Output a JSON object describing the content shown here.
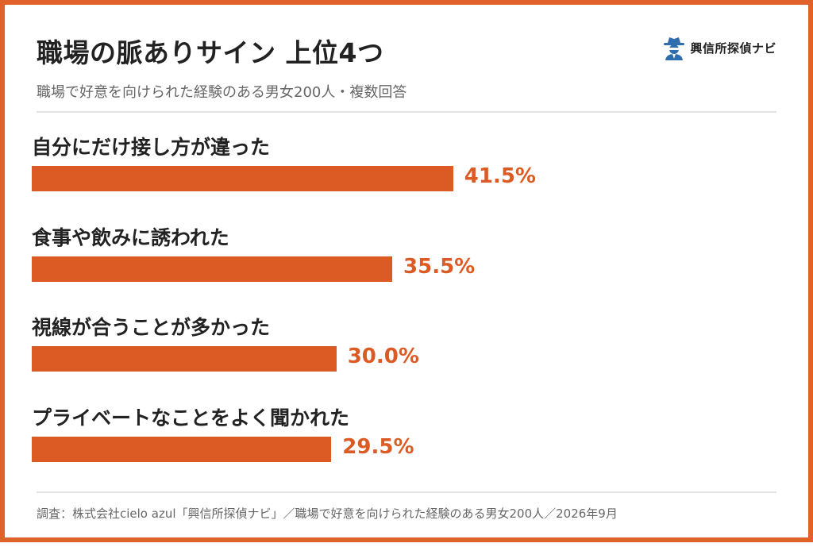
{
  "header": {
    "title": "職場の脈ありサイン 上位4つ",
    "subtitle": "職場で好意を向けられた経験のある男女200人・複数回答",
    "logo_text": "興信所探偵ナビ",
    "logo_icon": "detective-icon"
  },
  "footer": {
    "source": "調査：株式会社cielo azul「興信所探偵ナビ」／職場で好意を向けられた経験のある男女200人／2026年9月"
  },
  "colors": {
    "accent": "#dc5b24",
    "frame": "#e0622a",
    "text": "#222222",
    "muted": "#666666",
    "logo_blue": "#2f6eae"
  },
  "chart_data": {
    "type": "bar",
    "orientation": "horizontal",
    "categories": [
      "自分にだけ接し方が違った",
      "食事や飲みに誘われた",
      "視線が合うことが多かった",
      "プライベートなことをよく聞かれた"
    ],
    "values": [
      41.5,
      35.5,
      30.0,
      29.5
    ],
    "value_labels": [
      "41.5%",
      "35.5%",
      "30.0%",
      "29.5%"
    ],
    "unit": "%",
    "xlim": [
      0,
      100
    ],
    "grid": false
  }
}
